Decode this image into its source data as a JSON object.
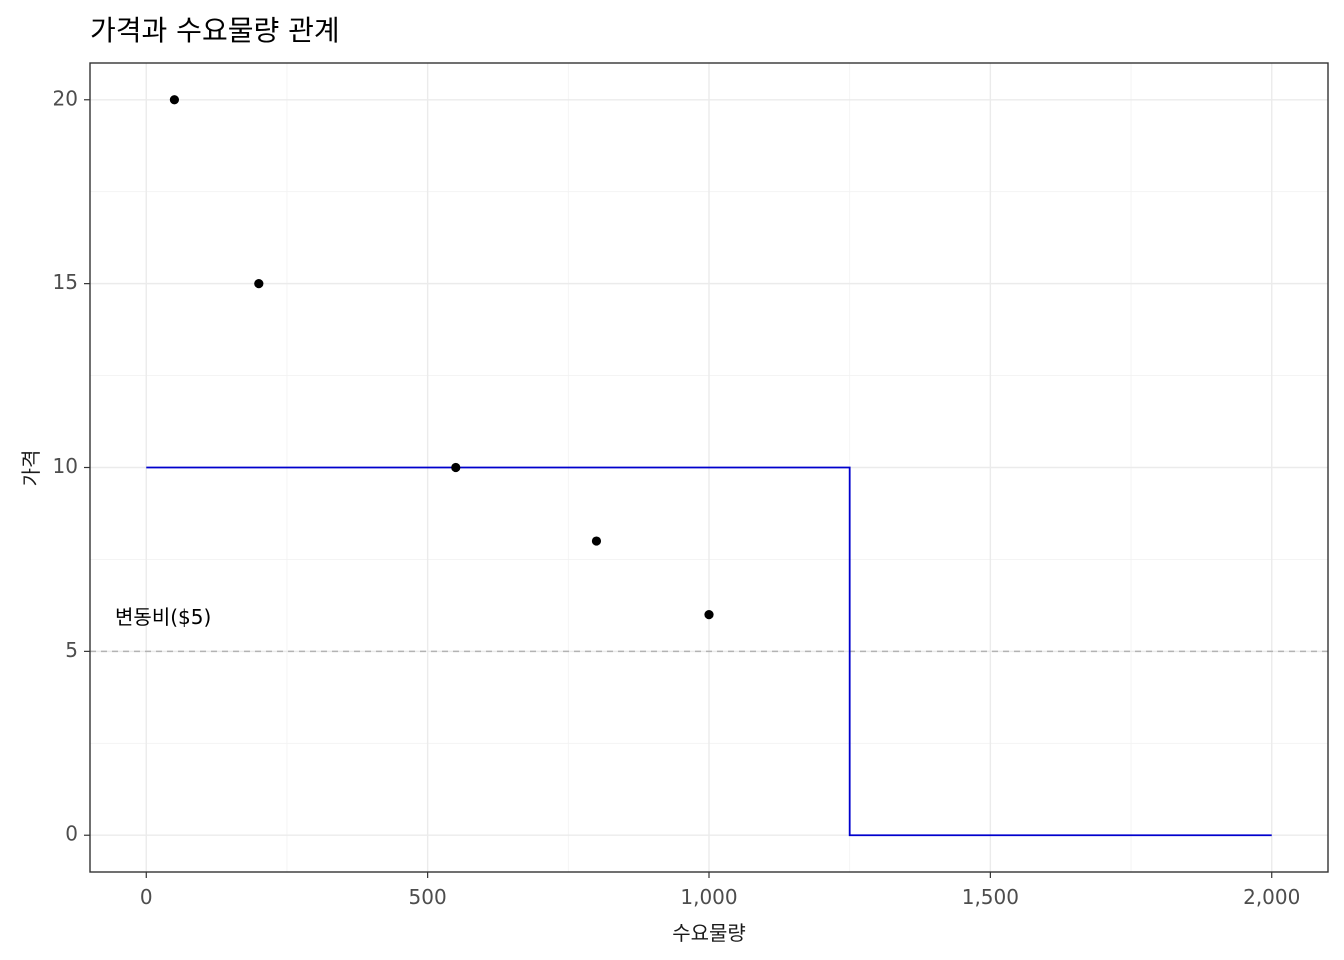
{
  "chart_data": {
    "type": "scatter",
    "title": "가격과 수요물량 관계",
    "xlabel": "수요물량",
    "ylabel": "가격",
    "xlim": [
      -100,
      2100
    ],
    "ylim": [
      -1,
      21
    ],
    "x_ticks": [
      0,
      500,
      1000,
      1500,
      2000
    ],
    "x_tick_labels": [
      "0",
      "500",
      "1,000",
      "1,500",
      "2,000"
    ],
    "y_ticks": [
      0,
      5,
      10,
      15,
      20
    ],
    "y_tick_labels": [
      "0",
      "5",
      "10",
      "15",
      "20"
    ],
    "grid": true,
    "points": {
      "x": [
        50,
        200,
        550,
        800,
        1000
      ],
      "y": [
        20,
        15,
        10,
        8,
        6
      ],
      "color": "#000000"
    },
    "step_line": {
      "x": [
        0,
        1250,
        1250,
        2000
      ],
      "y": [
        10,
        10,
        0,
        0
      ],
      "color": "#0000cd"
    },
    "reference_line": {
      "y": 5,
      "style": "dashed",
      "color": "#b3b3b3"
    },
    "annotation": {
      "text": "변동비($5)",
      "x": 30,
      "y": 5.9
    }
  }
}
